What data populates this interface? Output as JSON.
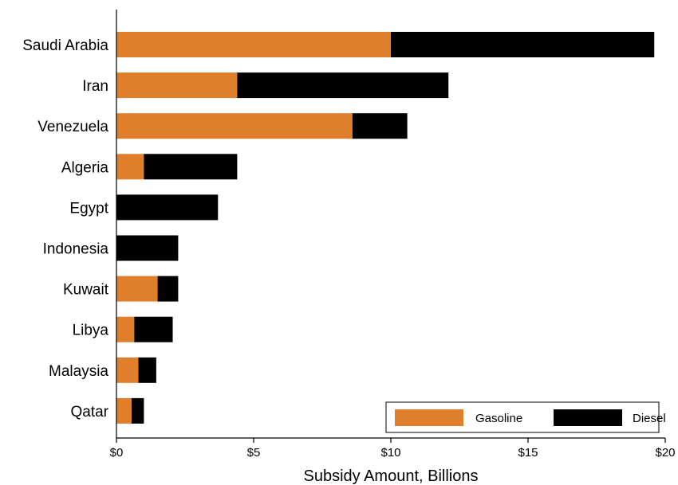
{
  "chart_data": {
    "type": "bar",
    "orientation": "horizontal",
    "stacked": true,
    "categories": [
      "Saudi Arabia",
      "Iran",
      "Venezuela",
      "Algeria",
      "Egypt",
      "Indonesia",
      "Kuwait",
      "Libya",
      "Malaysia",
      "Qatar"
    ],
    "series": [
      {
        "name": "Gasoline",
        "color": "#e07f2b",
        "values": [
          10.0,
          4.4,
          8.6,
          1.0,
          0.0,
          0.0,
          1.5,
          0.65,
          0.8,
          0.55
        ]
      },
      {
        "name": "Diesel",
        "color": "#000000",
        "values": [
          9.6,
          7.7,
          2.0,
          3.4,
          3.7,
          2.25,
          0.75,
          1.4,
          0.65,
          0.45
        ]
      }
    ],
    "title": "",
    "xlabel": "Subsidy Amount, Billions",
    "ylabel": "",
    "xlim": [
      0,
      20
    ],
    "xticks": [
      0,
      5,
      10,
      15,
      20
    ],
    "xtick_labels": [
      "$0",
      "$5",
      "$10",
      "$15",
      "$20"
    ],
    "grid": false,
    "legend_position": "bottom-right"
  }
}
